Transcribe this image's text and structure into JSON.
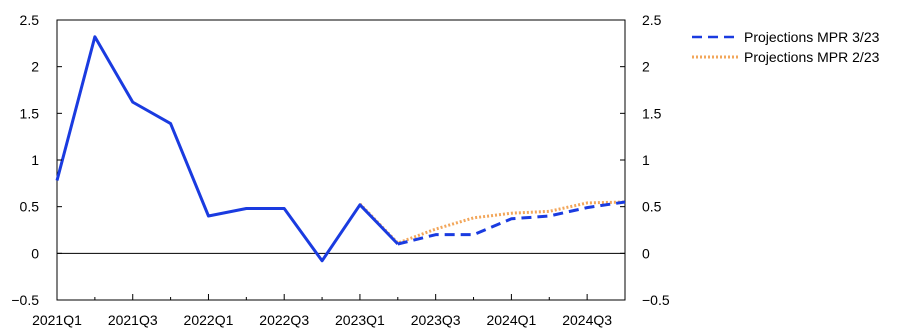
{
  "chart_data": {
    "type": "line",
    "title": "",
    "xlabel": "",
    "ylabel": "",
    "ylim": [
      -0.5,
      2.5
    ],
    "yticks": [
      -0.5,
      0,
      0.5,
      1,
      1.5,
      2,
      2.5
    ],
    "ytick_labels": [
      "−0.5",
      "0",
      "0.5",
      "1",
      "1.5",
      "2",
      "2.5"
    ],
    "categories": [
      "2021Q1",
      "2021Q2",
      "2021Q3",
      "2021Q4",
      "2022Q1",
      "2022Q2",
      "2022Q3",
      "2022Q4",
      "2023Q1",
      "2023Q2",
      "2023Q3",
      "2023Q4",
      "2024Q1",
      "2024Q2",
      "2024Q3",
      "2024Q4"
    ],
    "xtick_labels": [
      "2021Q1",
      "2021Q3",
      "2022Q1",
      "2022Q3",
      "2023Q1",
      "2023Q3",
      "2024Q1",
      "2024Q3"
    ],
    "grid": false,
    "zero_line": true,
    "legend_position": "top-right outside",
    "series": [
      {
        "name": "",
        "style": "solid",
        "color": "#1a3be0",
        "values": [
          0.78,
          2.32,
          1.62,
          1.39,
          0.4,
          0.48,
          0.48,
          -0.08,
          0.52,
          0.1,
          null,
          null,
          null,
          null,
          null,
          null
        ]
      },
      {
        "name": "Projections MPR 3/23",
        "style": "dashed",
        "color": "#1a3be0",
        "values": [
          null,
          null,
          null,
          null,
          null,
          null,
          null,
          null,
          null,
          0.1,
          0.2,
          0.2,
          0.37,
          0.4,
          0.49,
          0.55
        ]
      },
      {
        "name": "Projections MPR 2/23",
        "style": "dotted",
        "color": "#f2a65a",
        "values": [
          null,
          null,
          null,
          null,
          null,
          null,
          null,
          null,
          0.53,
          0.11,
          0.26,
          0.38,
          0.43,
          0.45,
          0.54,
          0.55
        ]
      }
    ]
  }
}
